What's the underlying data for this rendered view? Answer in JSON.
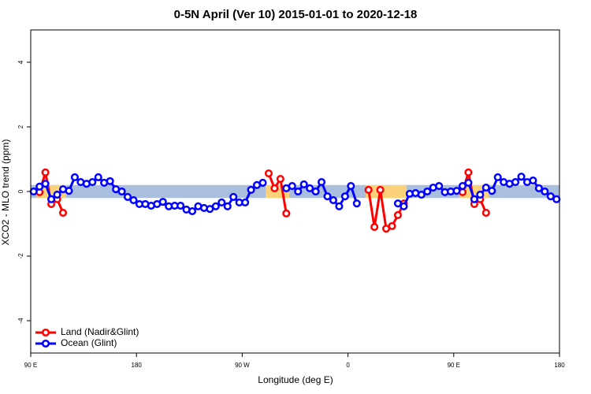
{
  "chart_data": {
    "type": "line",
    "title": "0-5N April (Ver 10)   2015-01-01 to 2020-12-18",
    "x_label": "Longitude (deg E)",
    "y_label": "XCO2 - MLO trend (ppm)",
    "xlim": [
      90,
      540
    ],
    "xticks": [
      {
        "value": 90,
        "label": "90 E"
      },
      {
        "value": 180,
        "label": "180"
      },
      {
        "value": 270,
        "label": "90 W"
      },
      {
        "value": 360,
        "label": "0"
      },
      {
        "value": 450,
        "label": "90 E"
      },
      {
        "value": 540,
        "label": "180"
      }
    ],
    "ylim": [
      -5,
      5
    ],
    "yticks": [
      -4,
      -2,
      0,
      2,
      4
    ],
    "band": 0.2,
    "legend_position": "bottom-left",
    "x": [
      92.5,
      97.5,
      102.5,
      107.5,
      112.5,
      117.5,
      122.5,
      127.5,
      132.5,
      137.5,
      142.5,
      147.5,
      152.5,
      157.5,
      162.5,
      167.5,
      172.5,
      177.5,
      182.5,
      187.5,
      192.5,
      197.5,
      202.5,
      207.5,
      212.5,
      217.5,
      222.5,
      227.5,
      232.5,
      237.5,
      242.5,
      247.5,
      252.5,
      257.5,
      262.5,
      267.5,
      272.5,
      277.5,
      282.5,
      287.5,
      292.5,
      297.5,
      302.5,
      307.5,
      312.5,
      317.5,
      322.5,
      327.5,
      332.5,
      337.5,
      342.5,
      347.5,
      352.5,
      357.5,
      362.5,
      367.5,
      372.5,
      377.5,
      382.5,
      387.5,
      392.5,
      397.5,
      402.5,
      407.5,
      412.5,
      417.5,
      422.5,
      427.5,
      432.5,
      437.5,
      442.5,
      447.5,
      452.5,
      457.5,
      462.5,
      467.5,
      472.5,
      477.5,
      482.5,
      487.5,
      492.5,
      497.5,
      502.5,
      507.5,
      512.5,
      517.5,
      522.5,
      527.5,
      532.5,
      537.5
    ],
    "series": [
      {
        "name": "Land (Nadir&Glint)",
        "color": "#ff0000",
        "band_color": "#f9d27a",
        "values": [
          null,
          -0.02,
          0.59,
          -0.39,
          -0.24,
          -0.66,
          null,
          null,
          null,
          null,
          null,
          null,
          null,
          null,
          null,
          null,
          null,
          null,
          null,
          null,
          null,
          null,
          null,
          null,
          null,
          null,
          null,
          null,
          null,
          null,
          null,
          null,
          null,
          null,
          null,
          null,
          null,
          null,
          null,
          null,
          0.56,
          0.1,
          0.39,
          -0.68,
          null,
          null,
          null,
          null,
          null,
          null,
          null,
          null,
          null,
          null,
          null,
          null,
          null,
          0.05,
          -1.1,
          0.05,
          -1.15,
          -1.07,
          -0.73,
          -0.37,
          null,
          null,
          null,
          null,
          null,
          null,
          null,
          null,
          null,
          -0.02,
          0.59,
          -0.39,
          -0.24,
          -0.66,
          null,
          null,
          null,
          null,
          null,
          null,
          null,
          null,
          null,
          null,
          null,
          null
        ]
      },
      {
        "name": "Ocean (Glint)",
        "color": "#0000ff",
        "band_color": "#a9bfdd",
        "values": [
          0.0,
          0.15,
          0.24,
          -0.24,
          -0.1,
          0.07,
          0.02,
          0.44,
          0.29,
          0.24,
          0.29,
          0.44,
          0.27,
          0.32,
          0.07,
          0.0,
          -0.17,
          -0.27,
          -0.39,
          -0.39,
          -0.44,
          -0.39,
          -0.32,
          -0.46,
          -0.44,
          -0.44,
          -0.56,
          -0.61,
          -0.46,
          -0.51,
          -0.54,
          -0.46,
          -0.34,
          -0.46,
          -0.17,
          -0.34,
          -0.34,
          0.05,
          0.2,
          0.27,
          null,
          null,
          null,
          0.1,
          0.17,
          0.0,
          0.22,
          0.1,
          0.0,
          0.29,
          -0.15,
          -0.27,
          -0.46,
          -0.15,
          0.17,
          -0.37,
          null,
          null,
          null,
          null,
          null,
          null,
          -0.37,
          -0.46,
          -0.07,
          -0.05,
          -0.1,
          0.0,
          0.12,
          0.17,
          -0.02,
          0.0,
          0.02,
          0.17,
          0.27,
          -0.24,
          -0.1,
          0.12,
          0.02,
          0.44,
          0.29,
          0.24,
          0.29,
          0.46,
          0.29,
          0.34,
          0.1,
          0.0,
          -0.15,
          -0.24
        ]
      }
    ]
  }
}
